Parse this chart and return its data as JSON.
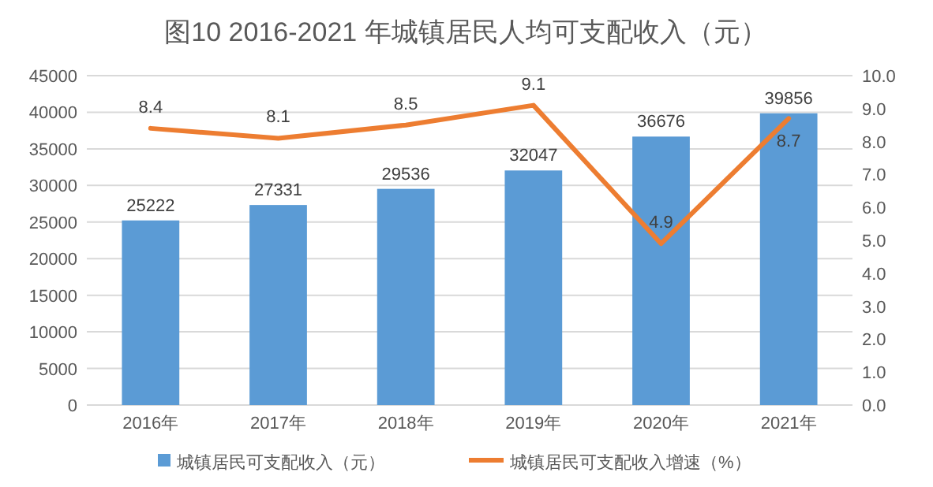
{
  "chart_data": {
    "type": "bar",
    "title": "图10  2016-2021 年城镇居民人均可支配收入（元）",
    "categories": [
      "2016年",
      "2017年",
      "2018年",
      "2019年",
      "2020年",
      "2021年"
    ],
    "series": [
      {
        "name": "城镇居民可支配收入（元）",
        "color": "#5b9bd5",
        "values": [
          25222,
          27331,
          29536,
          32047,
          36676,
          39856
        ]
      },
      {
        "name": "城镇居民可支配收入增速（%）",
        "type": "line",
        "axis": "y2",
        "color": "#ed7d31",
        "values": [
          8.4,
          8.1,
          8.5,
          9.1,
          4.9,
          8.7
        ]
      }
    ],
    "ylim": [
      0,
      45000
    ],
    "yticks": [
      0,
      5000,
      10000,
      15000,
      20000,
      25000,
      30000,
      35000,
      40000,
      45000
    ],
    "y2lim": [
      0,
      10
    ],
    "y2ticks": [
      {
        "value": 0,
        "label": "0.0"
      },
      {
        "value": 1,
        "label": "1.0"
      },
      {
        "value": 2,
        "label": "2.0"
      },
      {
        "value": 3,
        "label": "3.0"
      },
      {
        "value": 4,
        "label": "4.0"
      },
      {
        "value": 5,
        "label": "5.0"
      },
      {
        "value": 6,
        "label": "6.0"
      },
      {
        "value": 7,
        "label": "7.0"
      },
      {
        "value": 8,
        "label": "8.0"
      },
      {
        "value": 9,
        "label": "9.0"
      },
      {
        "value": 10,
        "label": "10.0"
      }
    ],
    "grid": "y",
    "legend": "bottom",
    "data_labels": true,
    "marker": "none",
    "line_style": "solid"
  }
}
